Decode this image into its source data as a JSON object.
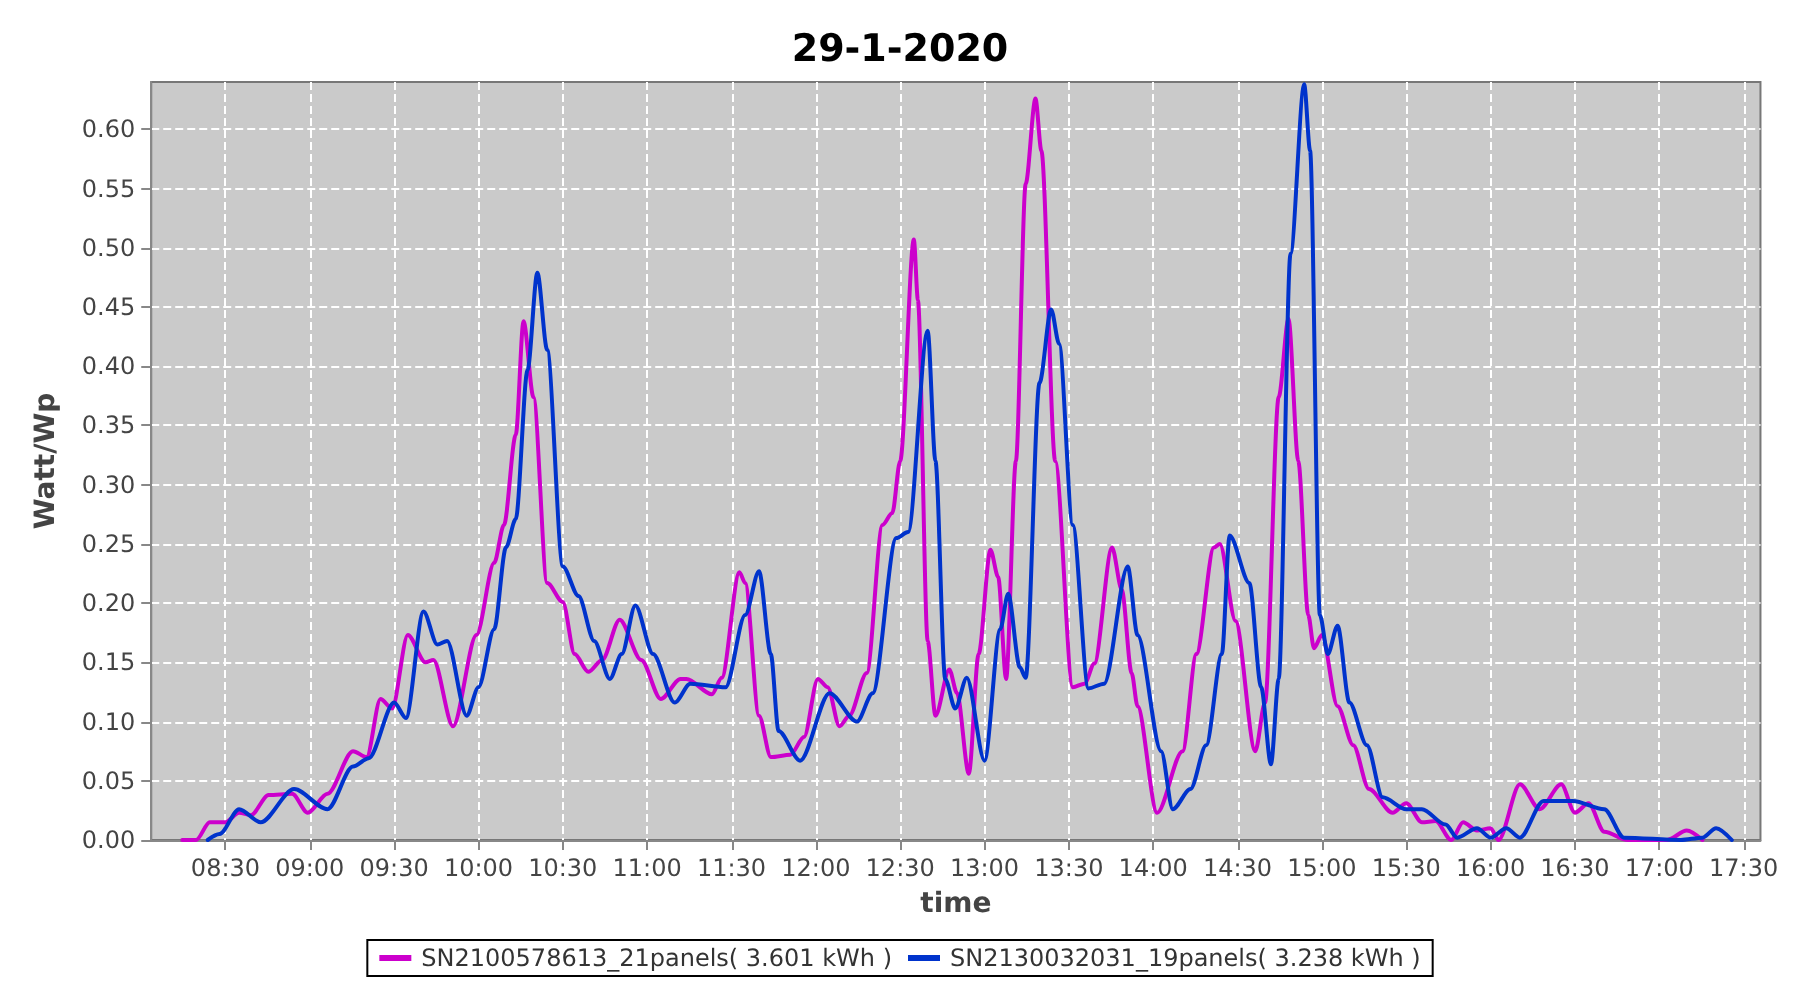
{
  "chart_data": {
    "type": "line",
    "title": "29-1-2020",
    "xlabel": "time",
    "ylabel": "Watt/Wp",
    "grid": true,
    "legend": "bottom",
    "line_style": "solid",
    "xlim": [
      8.06,
      17.6
    ],
    "xticks": [
      {
        "value": 8.5,
        "label": "08:30"
      },
      {
        "value": 9,
        "label": "09:00"
      },
      {
        "value": 9.5,
        "label": "09:30"
      },
      {
        "value": 10,
        "label": "10:00"
      },
      {
        "value": 10.5,
        "label": "10:30"
      },
      {
        "value": 11,
        "label": "11:00"
      },
      {
        "value": 11.5,
        "label": "11:30"
      },
      {
        "value": 12,
        "label": "12:00"
      },
      {
        "value": 12.5,
        "label": "12:30"
      },
      {
        "value": 13,
        "label": "13:00"
      },
      {
        "value": 13.5,
        "label": "13:30"
      },
      {
        "value": 14,
        "label": "14:00"
      },
      {
        "value": 14.5,
        "label": "14:30"
      },
      {
        "value": 15,
        "label": "15:00"
      },
      {
        "value": 15.5,
        "label": "15:30"
      },
      {
        "value": 16,
        "label": "16:00"
      },
      {
        "value": 16.5,
        "label": "16:30"
      },
      {
        "value": 17,
        "label": "17:00"
      },
      {
        "value": 17.5,
        "label": "17:30"
      }
    ],
    "ylim": [
      0,
      0.64
    ],
    "yticks": [
      {
        "value": 0,
        "label": "0.00"
      },
      {
        "value": 0.05,
        "label": "0.05"
      },
      {
        "value": 0.1,
        "label": "0.10"
      },
      {
        "value": 0.15,
        "label": "0.15"
      },
      {
        "value": 0.2,
        "label": "0.20"
      },
      {
        "value": 0.25,
        "label": "0.25"
      },
      {
        "value": 0.3,
        "label": "0.30"
      },
      {
        "value": 0.35,
        "label": "0.35"
      },
      {
        "value": 0.4,
        "label": "0.40"
      },
      {
        "value": 0.45,
        "label": "0.45"
      },
      {
        "value": 0.5,
        "label": "0.50"
      },
      {
        "value": 0.55,
        "label": "0.55"
      },
      {
        "value": 0.6,
        "label": "0.60"
      }
    ],
    "series": [
      {
        "name": "SN2100578613_21panels( 3.601 kWh )",
        "color": "#cc00cc",
        "x": [
          8.244,
          8.326,
          8.407,
          8.5,
          8.581,
          8.651,
          8.756,
          8.895,
          8.988,
          9.105,
          9.256,
          9.337,
          9.419,
          9.488,
          9.581,
          9.686,
          9.733,
          9.849,
          9.988,
          10.093,
          10.151,
          10.221,
          10.267,
          10.326,
          10.407,
          10.5,
          10.57,
          10.651,
          10.733,
          10.837,
          10.965,
          11.081,
          11.198,
          11.233,
          11.384,
          11.442,
          11.547,
          11.581,
          11.663,
          11.733,
          11.849,
          11.93,
          12.012,
          12.07,
          12.14,
          12.198,
          12.302,
          12.395,
          12.453,
          12.5,
          12.581,
          12.605,
          12.663,
          12.709,
          12.791,
          12.837,
          12.907,
          12.965,
          13.035,
          13.081,
          13.128,
          13.186,
          13.244,
          13.302,
          13.337,
          13.419,
          13.523,
          13.593,
          13.651,
          13.756,
          13.814,
          13.872,
          13.907,
          14.023,
          14.174,
          14.256,
          14.36,
          14.395,
          14.488,
          14.605,
          14.663,
          14.744,
          14.802,
          14.86,
          14.919,
          14.953,
          15.0,
          15.093,
          15.186,
          15.279,
          15.419,
          15.5,
          15.593,
          15.674,
          15.767,
          15.837,
          15.919,
          16.0,
          16.047,
          16.174,
          16.291,
          16.419,
          16.5,
          16.581,
          16.674,
          16.814,
          17.047,
          17.163,
          17.256
        ],
        "values": [
          0,
          0,
          0.015,
          0.015,
          0.023,
          0.021,
          0.038,
          0.039,
          0.023,
          0.039,
          0.075,
          0.07,
          0.119,
          0.111,
          0.173,
          0.15,
          0.152,
          0.096,
          0.173,
          0.234,
          0.266,
          0.342,
          0.438,
          0.374,
          0.217,
          0.201,
          0.157,
          0.142,
          0.152,
          0.186,
          0.152,
          0.119,
          0.136,
          0.136,
          0.123,
          0.137,
          0.226,
          0.217,
          0.105,
          0.07,
          0.072,
          0.087,
          0.136,
          0.129,
          0.096,
          0.105,
          0.141,
          0.266,
          0.276,
          0.32,
          0.507,
          0.456,
          0.168,
          0.105,
          0.144,
          0.124,
          0.056,
          0.157,
          0.245,
          0.222,
          0.136,
          0.32,
          0.554,
          0.626,
          0.582,
          0.32,
          0.129,
          0.132,
          0.149,
          0.247,
          0.211,
          0.141,
          0.113,
          0.023,
          0.075,
          0.157,
          0.247,
          0.25,
          0.185,
          0.075,
          0.116,
          0.374,
          0.44,
          0.32,
          0.19,
          0.162,
          0.173,
          0.113,
          0.08,
          0.043,
          0.023,
          0.031,
          0.015,
          0.016,
          0,
          0.015,
          0.008,
          0.01,
          0,
          0.047,
          0.026,
          0.047,
          0.023,
          0.031,
          0.007,
          0,
          0,
          0.008,
          0
        ]
      },
      {
        "name": "SN2130032031_19panels( 3.238 kWh )",
        "color": "#0033cc",
        "x": [
          8.395,
          8.465,
          8.581,
          8.709,
          8.907,
          9.105,
          9.256,
          9.349,
          9.5,
          9.57,
          9.674,
          9.756,
          9.814,
          9.93,
          10.0,
          10.093,
          10.163,
          10.221,
          10.291,
          10.349,
          10.407,
          10.5,
          10.593,
          10.686,
          10.779,
          10.849,
          10.93,
          11.035,
          11.163,
          11.256,
          11.465,
          11.581,
          11.663,
          11.733,
          11.779,
          11.907,
          12.081,
          12.244,
          12.337,
          12.477,
          12.547,
          12.663,
          12.709,
          12.767,
          12.826,
          12.895,
          13.0,
          13.093,
          13.14,
          13.209,
          13.244,
          13.326,
          13.395,
          13.442,
          13.523,
          13.616,
          13.709,
          13.849,
          13.907,
          14.047,
          14.116,
          14.221,
          14.314,
          14.407,
          14.453,
          14.57,
          14.64,
          14.698,
          14.744,
          14.814,
          14.895,
          14.93,
          14.988,
          15.035,
          15.093,
          15.163,
          15.267,
          15.36,
          15.5,
          15.593,
          15.733,
          15.802,
          15.919,
          16.0,
          16.093,
          16.174,
          16.314,
          16.488,
          16.674,
          16.791,
          17.128,
          17.256,
          17.337,
          17.43
        ],
        "values": [
          0,
          0.005,
          0.026,
          0.015,
          0.043,
          0.026,
          0.062,
          0.069,
          0.116,
          0.103,
          0.193,
          0.165,
          0.168,
          0.105,
          0.129,
          0.178,
          0.247,
          0.271,
          0.397,
          0.479,
          0.414,
          0.231,
          0.206,
          0.168,
          0.136,
          0.157,
          0.198,
          0.157,
          0.116,
          0.132,
          0.129,
          0.19,
          0.227,
          0.157,
          0.092,
          0.067,
          0.124,
          0.1,
          0.124,
          0.255,
          0.26,
          0.43,
          0.32,
          0.136,
          0.111,
          0.137,
          0.067,
          0.178,
          0.208,
          0.146,
          0.137,
          0.386,
          0.448,
          0.419,
          0.266,
          0.128,
          0.132,
          0.231,
          0.173,
          0.075,
          0.026,
          0.043,
          0.08,
          0.157,
          0.257,
          0.217,
          0.129,
          0.064,
          0.136,
          0.495,
          0.638,
          0.582,
          0.19,
          0.157,
          0.181,
          0.116,
          0.08,
          0.036,
          0.026,
          0.026,
          0.013,
          0.002,
          0.01,
          0.002,
          0.01,
          0.002,
          0.033,
          0.033,
          0.026,
          0.002,
          0,
          0.002,
          0.01,
          0
        ]
      }
    ]
  }
}
